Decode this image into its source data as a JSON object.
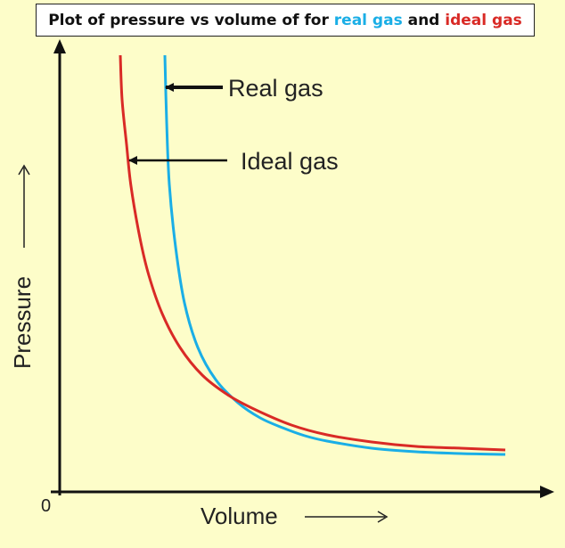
{
  "title": {
    "prefix": "Plot of pressure vs volume of for ",
    "real": "real gas",
    "middle": " and ",
    "ideal": "ideal gas"
  },
  "colors": {
    "background": "#fdfdc9",
    "real_gas": "#1aaee6",
    "ideal_gas": "#d92a26",
    "axis": "#111111"
  },
  "chart_data": {
    "type": "line",
    "title": "Plot of pressure vs volume of for real gas and ideal gas",
    "xlabel": "Volume",
    "ylabel": "Pressure",
    "origin_label": "0",
    "grid": false,
    "series": [
      {
        "name": "Real gas",
        "color": "#1aaee6",
        "points": [
          [
            118,
            490
          ],
          [
            120,
            415
          ],
          [
            123,
            345
          ],
          [
            130,
            275
          ],
          [
            140,
            212
          ],
          [
            155,
            162
          ],
          [
            175,
            126
          ],
          [
            200,
            100
          ],
          [
            225,
            83
          ],
          [
            250,
            72
          ],
          [
            275,
            63
          ],
          [
            300,
            57
          ],
          [
            350,
            49
          ],
          [
            400,
            45
          ],
          [
            450,
            43
          ],
          [
            500,
            42
          ]
        ]
      },
      {
        "name": "Ideal gas",
        "color": "#d92a26",
        "points": [
          [
            68,
            490
          ],
          [
            70,
            440
          ],
          [
            75,
            390
          ],
          [
            80,
            343
          ],
          [
            90,
            285
          ],
          [
            100,
            243
          ],
          [
            115,
            200
          ],
          [
            135,
            162
          ],
          [
            160,
            131
          ],
          [
            190,
            108
          ],
          [
            220,
            92
          ],
          [
            260,
            75
          ],
          [
            300,
            64
          ],
          [
            350,
            56
          ],
          [
            400,
            51
          ],
          [
            450,
            49
          ],
          [
            500,
            47
          ]
        ]
      }
    ],
    "annotations": [
      {
        "text": "Real gas"
      },
      {
        "text": "Ideal gas"
      }
    ]
  }
}
